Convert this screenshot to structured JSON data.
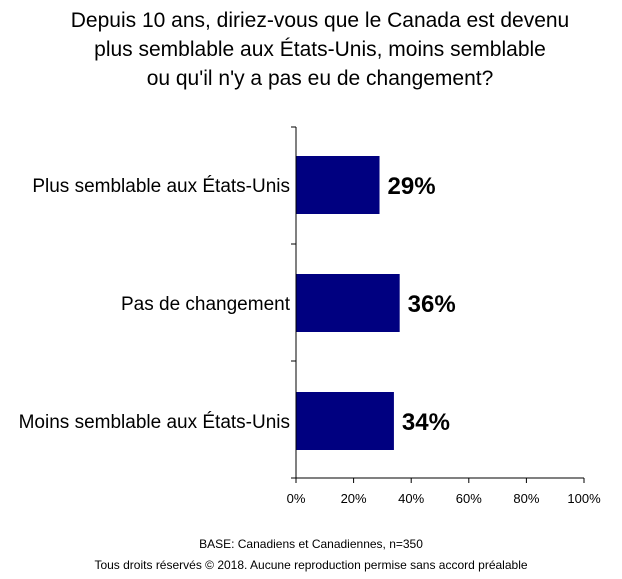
{
  "title_lines": [
    "Depuis 10 ans, diriez-vous que le Canada est devenu",
    "plus semblable aux États-Unis, moins semblable",
    "ou qu'il n'y a pas eu de changement?"
  ],
  "footer": {
    "base": "BASE: Canadiens et Canadiennes,  n=350",
    "rights": "Tous droits réservés © 2018. Aucune reproduction  permise sans accord préalable"
  },
  "colors": {
    "bar": "#000080",
    "axis": "#000000"
  },
  "chart_data": {
    "type": "bar",
    "orientation": "horizontal",
    "categories": [
      "Plus semblable aux États-Unis",
      "Pas de changement",
      "Moins semblable aux États-Unis"
    ],
    "values": [
      29,
      36,
      34
    ],
    "value_labels": [
      "29%",
      "36%",
      "34%"
    ],
    "xlim": [
      0,
      100
    ],
    "xticks": [
      "0%",
      "20%",
      "40%",
      "60%",
      "80%",
      "100%"
    ],
    "xlabel": "",
    "ylabel": "",
    "grid": false,
    "legend": "none"
  }
}
